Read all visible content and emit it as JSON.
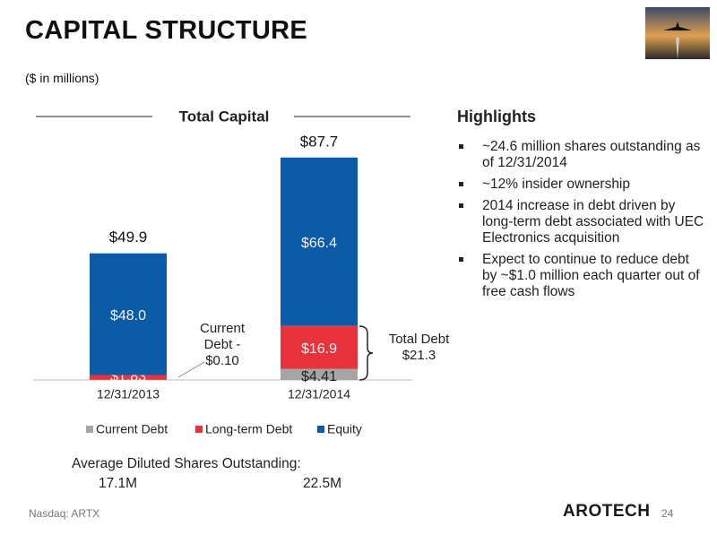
{
  "header": {
    "title": "CAPITAL STRUCTURE",
    "subtitle": "($ in millions)"
  },
  "chart_data": {
    "type": "stacked-bar",
    "title": "Total Capital",
    "categories": [
      "12/31/2013",
      "12/31/2014"
    ],
    "series": [
      {
        "name": "Current Debt",
        "color": "#a5a5a5",
        "values": [
          0.1,
          4.41
        ],
        "value_labels": [
          null,
          "$4.41"
        ]
      },
      {
        "name": "Long-term Debt",
        "color": "#e8323c",
        "values": [
          1.83,
          16.9
        ],
        "value_labels": [
          "$1.83",
          "$16.9"
        ]
      },
      {
        "name": "Equity",
        "color": "#0b5aa6",
        "values": [
          48.0,
          66.4
        ],
        "value_labels": [
          "$48.0",
          "$66.4"
        ]
      }
    ],
    "total_labels": [
      "$49.9",
      "$87.7"
    ],
    "annotations": [
      "Current Debt - $0.10",
      "Total Debt $21.3"
    ],
    "ylim": [
      0,
      100
    ],
    "legend": "bottom"
  },
  "highlights": {
    "title": "Highlights",
    "items": [
      "~24.6 million shares outstanding as of 12/31/2014",
      "~12% insider ownership",
      "2014 increase in debt driven by long-term debt associated with UEC Electronics acquisition",
      "Expect to continue to reduce debt by ~$1.0 million each quarter out of free cash flows"
    ]
  },
  "shares": {
    "title": "Average Diluted Shares Outstanding:",
    "values": [
      "17.1M",
      "22.5M"
    ]
  },
  "footer": {
    "ticker": "Nasdaq: ARTX",
    "logo": "AROTECH",
    "page": "24"
  }
}
